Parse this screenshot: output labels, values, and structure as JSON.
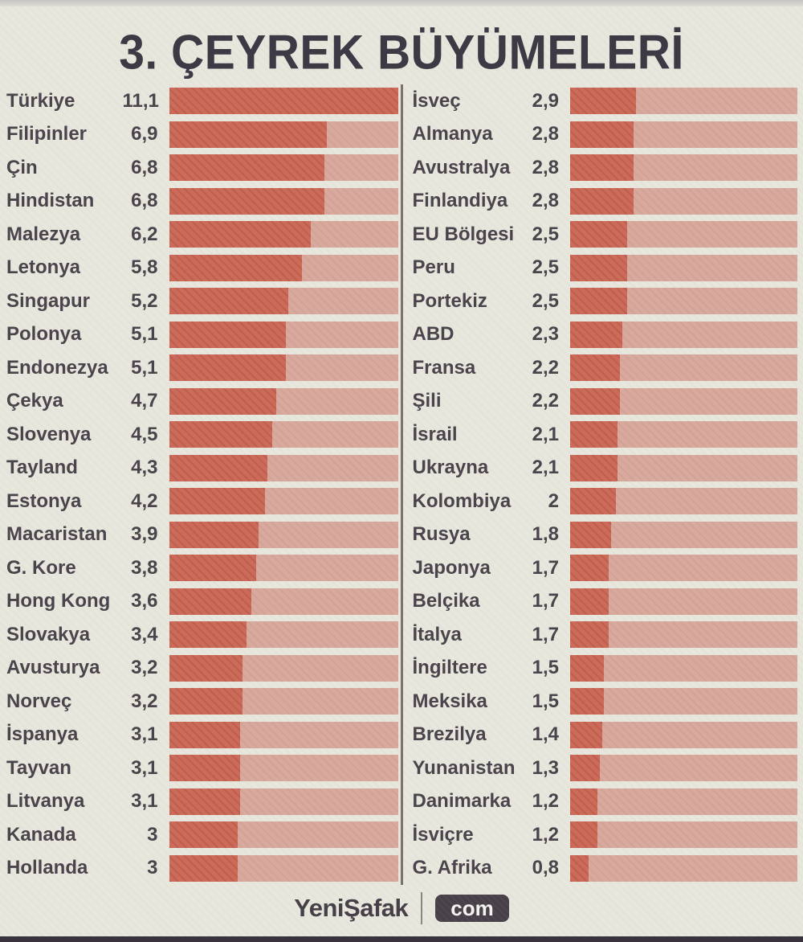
{
  "title": "3. ÇEYREK BÜYÜMELERİ",
  "chart_data": {
    "type": "bar",
    "orientation": "horizontal",
    "title": "3. ÇEYREK BÜYÜMELERİ",
    "value_format": "comma-decimal",
    "axis_max": 10,
    "grid": false,
    "legend": false,
    "colors": {
      "bar_fill": "#cc6b59",
      "bar_track": "#d8a99c",
      "background": "#e8e7dd",
      "text": "#4b444c",
      "title": "#3e3944"
    },
    "columns": [
      {
        "side": "left",
        "rows": [
          {
            "label": "Türkiye",
            "display": "11,1",
            "value": 11.1
          },
          {
            "label": "Filipinler",
            "display": "6,9",
            "value": 6.9
          },
          {
            "label": "Çin",
            "display": "6,8",
            "value": 6.8
          },
          {
            "label": "Hindistan",
            "display": "6,8",
            "value": 6.8
          },
          {
            "label": "Malezya",
            "display": "6,2",
            "value": 6.2
          },
          {
            "label": "Letonya",
            "display": "5,8",
            "value": 5.8
          },
          {
            "label": "Singapur",
            "display": "5,2",
            "value": 5.2
          },
          {
            "label": "Polonya",
            "display": "5,1",
            "value": 5.1
          },
          {
            "label": "Endonezya",
            "display": "5,1",
            "value": 5.1
          },
          {
            "label": "Çekya",
            "display": "4,7",
            "value": 4.7
          },
          {
            "label": "Slovenya",
            "display": "4,5",
            "value": 4.5
          },
          {
            "label": "Tayland",
            "display": "4,3",
            "value": 4.3
          },
          {
            "label": "Estonya",
            "display": "4,2",
            "value": 4.2
          },
          {
            "label": "Macaristan",
            "display": "3,9",
            "value": 3.9
          },
          {
            "label": "G. Kore",
            "display": "3,8",
            "value": 3.8
          },
          {
            "label": "Hong Kong",
            "display": "3,6",
            "value": 3.6
          },
          {
            "label": "Slovakya",
            "display": "3,4",
            "value": 3.4
          },
          {
            "label": "Avusturya",
            "display": "3,2",
            "value": 3.2
          },
          {
            "label": "Norveç",
            "display": "3,2",
            "value": 3.2
          },
          {
            "label": "İspanya",
            "display": "3,1",
            "value": 3.1
          },
          {
            "label": "Tayvan",
            "display": "3,1",
            "value": 3.1
          },
          {
            "label": "Litvanya",
            "display": "3,1",
            "value": 3.1
          },
          {
            "label": "Kanada",
            "display": "3",
            "value": 3
          },
          {
            "label": "Hollanda",
            "display": "3",
            "value": 3
          }
        ]
      },
      {
        "side": "right",
        "rows": [
          {
            "label": "İsveç",
            "display": "2,9",
            "value": 2.9
          },
          {
            "label": "Almanya",
            "display": "2,8",
            "value": 2.8
          },
          {
            "label": "Avustralya",
            "display": "2,8",
            "value": 2.8
          },
          {
            "label": "Finlandiya",
            "display": "2,8",
            "value": 2.8
          },
          {
            "label": "EU Bölgesi",
            "display": "2,5",
            "value": 2.5
          },
          {
            "label": "Peru",
            "display": "2,5",
            "value": 2.5
          },
          {
            "label": "Portekiz",
            "display": "2,5",
            "value": 2.5
          },
          {
            "label": "ABD",
            "display": "2,3",
            "value": 2.3
          },
          {
            "label": "Fransa",
            "display": "2,2",
            "value": 2.2
          },
          {
            "label": "Şili",
            "display": "2,2",
            "value": 2.2
          },
          {
            "label": "İsrail",
            "display": "2,1",
            "value": 2.1
          },
          {
            "label": "Ukrayna",
            "display": "2,1",
            "value": 2.1
          },
          {
            "label": "Kolombiya",
            "display": "2",
            "value": 2
          },
          {
            "label": "Rusya",
            "display": "1,8",
            "value": 1.8
          },
          {
            "label": "Japonya",
            "display": "1,7",
            "value": 1.7
          },
          {
            "label": "Belçika",
            "display": "1,7",
            "value": 1.7
          },
          {
            "label": "İtalya",
            "display": "1,7",
            "value": 1.7
          },
          {
            "label": "İngiltere",
            "display": "1,5",
            "value": 1.5
          },
          {
            "label": "Meksika",
            "display": "1,5",
            "value": 1.5
          },
          {
            "label": "Brezilya",
            "display": "1,4",
            "value": 1.4
          },
          {
            "label": "Yunanistan",
            "display": "1,3",
            "value": 1.3
          },
          {
            "label": "Danimarka",
            "display": "1,2",
            "value": 1.2
          },
          {
            "label": "İsviçre",
            "display": "1,2",
            "value": 1.2
          },
          {
            "label": "G. Afrika",
            "display": "0,8",
            "value": 0.8
          }
        ]
      }
    ]
  },
  "footer": {
    "brand": "YeniŞafak",
    "badge": "com"
  }
}
